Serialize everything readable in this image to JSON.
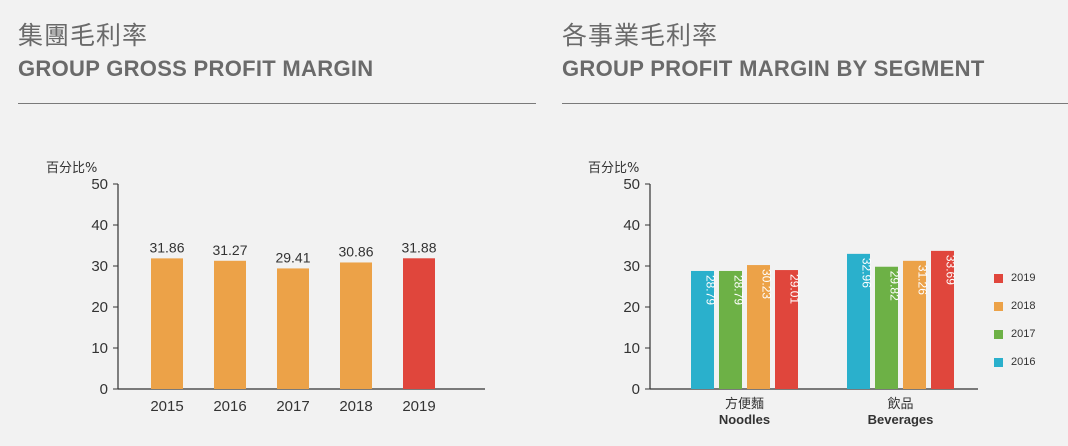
{
  "left_panel": {
    "title_cn": "集團毛利率",
    "title_en": "GROUP GROSS PROFIT MARGIN",
    "unit_label": "百分比%"
  },
  "right_panel": {
    "title_cn": "各事業毛利率",
    "title_en": "GROUP PROFIT MARGIN BY SEGMENT",
    "unit_label": "百分比%"
  },
  "colors": {
    "orange": "#eca248",
    "red": "#e0463c",
    "green": "#6db146",
    "cyan": "#2ab0cc"
  },
  "chart_data": [
    {
      "type": "bar",
      "title": "GROUP GROSS PROFIT MARGIN",
      "ylabel": "百分比%",
      "ylim": [
        0,
        50
      ],
      "yticks": [
        0,
        10,
        20,
        30,
        40,
        50
      ],
      "categories": [
        "2015",
        "2016",
        "2017",
        "2018",
        "2019"
      ],
      "values": [
        31.86,
        31.27,
        29.41,
        30.86,
        31.88
      ],
      "value_labels": [
        "31.86",
        "31.27",
        "29.41",
        "30.86",
        "31.88"
      ],
      "bar_colors": [
        "#eca248",
        "#eca248",
        "#eca248",
        "#eca248",
        "#e0463c"
      ]
    },
    {
      "type": "bar",
      "title": "GROUP PROFIT MARGIN BY SEGMENT",
      "ylabel": "百分比%",
      "ylim": [
        0,
        50
      ],
      "yticks": [
        0,
        10,
        20,
        30,
        40,
        50
      ],
      "categories": [
        {
          "cn": "方便麵",
          "en": "Noodles"
        },
        {
          "cn": "飲品",
          "en": "Beverages"
        }
      ],
      "series": [
        {
          "name": "2016",
          "color": "#2ab0cc",
          "values": [
            28.79,
            32.96
          ],
          "labels": [
            "28.79",
            "32.96"
          ]
        },
        {
          "name": "2017",
          "color": "#6db146",
          "values": [
            28.79,
            29.82
          ],
          "labels": [
            "28.79",
            "29.82"
          ]
        },
        {
          "name": "2018",
          "color": "#eca248",
          "values": [
            30.23,
            31.26
          ],
          "labels": [
            "30.23",
            "31.26"
          ]
        },
        {
          "name": "2019",
          "color": "#e0463c",
          "values": [
            29.01,
            33.69
          ],
          "labels": [
            "29.01",
            "33.69"
          ]
        }
      ],
      "legend_order": [
        "2019",
        "2018",
        "2017",
        "2016"
      ],
      "legend_position": "right"
    }
  ]
}
